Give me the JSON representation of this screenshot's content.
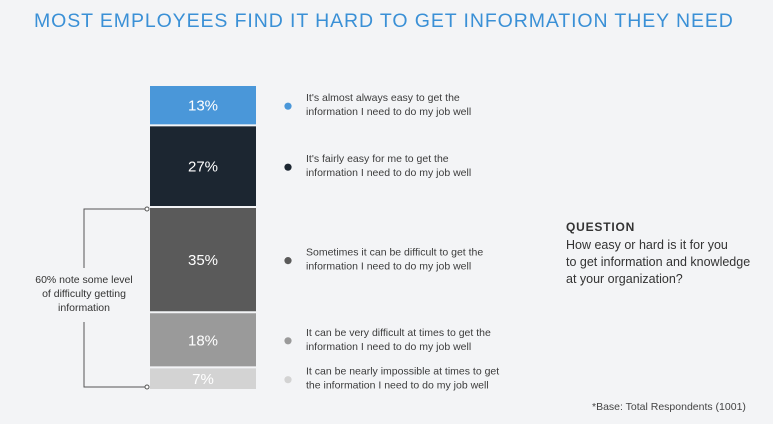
{
  "chart_data": {
    "type": "bar",
    "stacked": true,
    "title": "MOST EMPLOYEES FIND IT HARD TO GET INFORMATION THEY NEED",
    "categories": [
      "It's almost always easy to get the information I need to do my job well",
      "It's fairly easy for me to get the information I need to do my job well",
      "Sometimes it can be difficult to get the information I need to do my job well",
      "It can be very difficult at times to get the information I need to do my job well",
      "It can be nearly impossible at times to get the information I need to do my job well"
    ],
    "values": [
      13,
      27,
      35,
      18,
      7
    ],
    "labels": [
      "13%",
      "27%",
      "35%",
      "18%",
      "7%"
    ],
    "legend_lines": [
      [
        "It's almost always easy to get the",
        "information I need to do my job well"
      ],
      [
        "It's fairly easy for me to get the",
        "information I need to do my job well"
      ],
      [
        "Sometimes it can be difficult to get the",
        "information I need to do my job well"
      ],
      [
        "It can be very difficult at times to get the",
        "information I need to do my job well"
      ],
      [
        "It can be nearly impossible at times to get",
        "the information I need to do my job well"
      ]
    ],
    "colors": [
      "#4a97d9",
      "#1c2631",
      "#5a5a5a",
      "#9a9a9a",
      "#d3d3d3"
    ],
    "label_colors": [
      "#ffffff",
      "#ffffff",
      "#ffffff",
      "#ffffff",
      "#ffffff"
    ],
    "annotation": {
      "lines": [
        "60% note some level",
        "of difficulty getting",
        "information"
      ],
      "spans_segments": [
        2,
        4
      ]
    }
  },
  "question": {
    "heading": "QUESTION",
    "lines": [
      "How easy or hard is it for you",
      "to get information and knowledge",
      "at your organization?"
    ]
  },
  "footnote": "*Base: Total Respondents (1001)"
}
